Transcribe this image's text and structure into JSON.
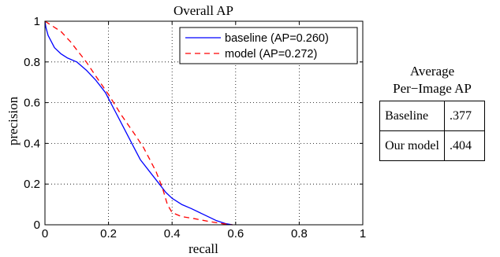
{
  "chart_data": {
    "type": "line",
    "title": "Overall AP",
    "xlabel": "recall",
    "ylabel": "precision",
    "xlim": [
      0,
      1
    ],
    "ylim": [
      0,
      1
    ],
    "xticks": [
      0,
      0.2,
      0.4,
      0.6,
      0.8,
      1
    ],
    "yticks": [
      0,
      0.2,
      0.4,
      0.6,
      0.8,
      1
    ],
    "xtick_labels": [
      "0",
      "0.2",
      "0.4",
      "0.6",
      "0.8",
      "1"
    ],
    "ytick_labels": [
      "0",
      "0.2",
      "0.4",
      "0.6",
      "0.8",
      "1"
    ],
    "grid": true,
    "legend_position": "top-right",
    "series": [
      {
        "name": "baseline (AP=0.260)",
        "color": "#0000ff",
        "dash": "solid",
        "x": [
          0,
          0.003,
          0.01,
          0.02,
          0.03,
          0.05,
          0.07,
          0.1,
          0.13,
          0.16,
          0.19,
          0.22,
          0.25,
          0.28,
          0.3,
          0.33,
          0.36,
          0.38,
          0.4,
          0.43,
          0.46,
          0.5,
          0.54,
          0.57,
          0.59
        ],
        "y": [
          1.0,
          0.97,
          0.93,
          0.9,
          0.87,
          0.84,
          0.82,
          0.8,
          0.76,
          0.71,
          0.65,
          0.56,
          0.47,
          0.38,
          0.32,
          0.26,
          0.2,
          0.16,
          0.13,
          0.1,
          0.08,
          0.05,
          0.02,
          0.005,
          0.0
        ]
      },
      {
        "name": "model (AP=0.272)",
        "color": "#ff0000",
        "dash": "dashed",
        "x": [
          0,
          0.01,
          0.03,
          0.05,
          0.08,
          0.1,
          0.13,
          0.16,
          0.2,
          0.24,
          0.28,
          0.31,
          0.33,
          0.35,
          0.37,
          0.385,
          0.4,
          0.43,
          0.47,
          0.52,
          0.56,
          0.59
        ],
        "y": [
          1.0,
          0.99,
          0.97,
          0.95,
          0.9,
          0.86,
          0.8,
          0.73,
          0.64,
          0.54,
          0.45,
          0.38,
          0.32,
          0.26,
          0.18,
          0.1,
          0.06,
          0.04,
          0.03,
          0.015,
          0.005,
          0.0
        ]
      }
    ]
  },
  "side_panel": {
    "title_line1": "Average",
    "title_line2": "Per−Image AP",
    "rows": [
      {
        "label": "Baseline",
        "value": ".377"
      },
      {
        "label": "Our model",
        "value": ".404"
      }
    ]
  }
}
